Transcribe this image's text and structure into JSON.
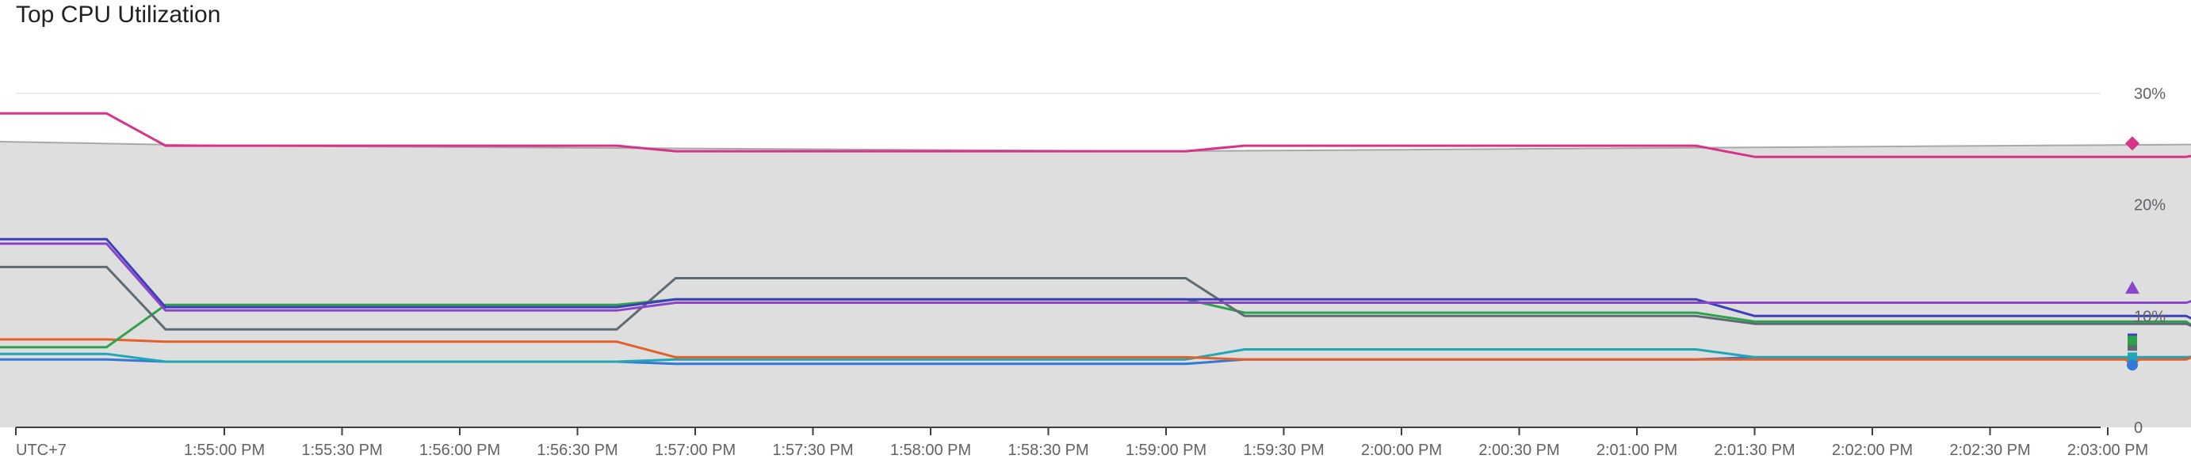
{
  "title": "Top CPU Utilization",
  "chart_data": {
    "type": "line",
    "title": "Top CPU Utilization",
    "timezone_label": "UTC+7",
    "x_unit": "seconds after 1:55:00 PM",
    "x_tick_labels": [
      "1:55:00 PM",
      "1:55:30 PM",
      "1:56:00 PM",
      "1:56:30 PM",
      "1:57:00 PM",
      "1:57:30 PM",
      "1:58:00 PM",
      "1:58:30 PM",
      "1:59:00 PM",
      "1:59:30 PM",
      "2:00:00 PM",
      "2:00:30 PM",
      "2:01:00 PM",
      "2:01:30 PM",
      "2:02:00 PM",
      "2:02:30 PM",
      "2:03:00 PM"
    ],
    "y_tick_labels": [
      "0",
      "10%",
      "20%",
      "30%"
    ],
    "ylim": [
      0,
      30
    ],
    "y_ticks": [
      0,
      10,
      20,
      30
    ],
    "grid": true,
    "cursor_at": 550,
    "band": {
      "color": "#dedede",
      "upper_color": "#a8a8a8",
      "x": [
        -420,
        0,
        240,
        540
      ],
      "y": [
        28,
        25.3,
        24.8,
        25.5
      ]
    },
    "series": [
      {
        "color": "#d6338a",
        "marker": "diamond",
        "x": [
          -420,
          -30,
          -15,
          15,
          100,
          115,
          245,
          260,
          375,
          390,
          420,
          500,
          515,
          600,
          615,
          815,
          830,
          880,
          890,
          1060,
          1075,
          1220,
          1235,
          1305,
          1315,
          1390,
          1410
        ],
        "y": [
          28.2,
          28.2,
          25.3,
          25.3,
          25.3,
          24.8,
          24.8,
          25.3,
          25.3,
          24.3,
          24.3,
          24.3,
          25.3,
          25.3,
          25.3,
          26.3,
          26.3,
          26.3,
          26.1,
          26.1,
          26.1,
          26.1,
          25.3,
          25.3,
          25.3,
          25.3,
          25.5
        ]
      },
      {
        "color": "#8b45c8",
        "marker": "triangle",
        "x": [
          -420,
          -30,
          -15,
          15,
          100,
          115,
          245,
          260,
          375,
          390,
          420,
          500,
          515,
          600,
          615,
          815,
          830,
          880,
          890,
          1060,
          1075,
          1220,
          1235,
          1305,
          1315,
          1390,
          1410
        ],
        "y": [
          16.5,
          16.5,
          10.5,
          10.5,
          10.5,
          11.2,
          11.2,
          11.2,
          11.2,
          11.2,
          11.2,
          11.2,
          12.8,
          12.8,
          12.8,
          10.8,
          10.8,
          10.8,
          11.5,
          11.5,
          11.5,
          15.5,
          15.5,
          15.5,
          15.5,
          12.5,
          12.5
        ]
      },
      {
        "color": "#3d3fb8",
        "marker": "",
        "x": [
          -420,
          -30,
          -15,
          15,
          100,
          115,
          245,
          260,
          375,
          390,
          420,
          500,
          515,
          600,
          615,
          815,
          830,
          880,
          890,
          1060,
          1075,
          1220,
          1235,
          1305,
          1315,
          1390,
          1410
        ],
        "y": [
          16.9,
          16.9,
          10.8,
          10.8,
          10.8,
          11.5,
          11.5,
          11.5,
          11.5,
          10.0,
          10.0,
          10.0,
          7.5,
          7.5,
          7.5,
          9.6,
          9.6,
          9.6,
          9.5,
          9.5,
          9.5,
          9.3,
          9.3,
          9.3,
          9.2,
          8.0,
          8.0
        ]
      },
      {
        "color": "#5f6b73",
        "marker": "",
        "x": [
          -420,
          -30,
          -15,
          15,
          100,
          115,
          245,
          260,
          375,
          390,
          420,
          500,
          515,
          600,
          615,
          815,
          830,
          880,
          890,
          1060,
          1075,
          1220,
          1235,
          1305,
          1315,
          1390,
          1410
        ],
        "y": [
          14.4,
          14.4,
          8.8,
          8.8,
          8.8,
          13.4,
          13.4,
          10.0,
          10.0,
          9.3,
          9.3,
          9.3,
          7.3,
          7.3,
          7.3,
          9.2,
          9.2,
          9.2,
          9.0,
          9.0,
          9.0,
          7.8,
          7.8,
          7.8,
          7.7,
          7.3,
          7.3
        ]
      },
      {
        "color": "#2ca24a",
        "marker": "",
        "x": [
          -420,
          -30,
          -15,
          15,
          100,
          115,
          245,
          260,
          375,
          390,
          420,
          500,
          515,
          600,
          615,
          815,
          830,
          880,
          890,
          1060,
          1075,
          1220,
          1235,
          1305,
          1315,
          1390,
          1410
        ],
        "y": [
          7.2,
          7.2,
          11.0,
          11.0,
          11.0,
          11.5,
          11.5,
          10.3,
          10.3,
          9.5,
          9.5,
          9.5,
          6.1,
          6.1,
          6.1,
          9.7,
          9.7,
          9.7,
          9.6,
          9.6,
          9.6,
          9.3,
          9.3,
          9.3,
          9.2,
          7.8,
          7.8
        ]
      },
      {
        "color": "#e3602a",
        "marker": "diamond",
        "x": [
          -420,
          -30,
          -15,
          15,
          100,
          115,
          245,
          260,
          375,
          390,
          420,
          500,
          515,
          600,
          615,
          815,
          830,
          880,
          890,
          1060,
          1075,
          1220,
          1235,
          1305,
          1315,
          1390,
          1410
        ],
        "y": [
          7.9,
          7.9,
          7.7,
          7.7,
          7.7,
          6.3,
          6.3,
          6.1,
          6.1,
          6.1,
          6.1,
          6.1,
          8.3,
          8.3,
          8.3,
          8.0,
          8.0,
          8.0,
          5.9,
          5.9,
          5.9,
          6.0,
          6.0,
          6.0,
          6.0,
          6.0,
          6.0
        ]
      },
      {
        "color": "#21a6b5",
        "marker": "",
        "x": [
          -420,
          -30,
          -15,
          15,
          100,
          115,
          245,
          260,
          375,
          390,
          420,
          500,
          515,
          600,
          615,
          815,
          830,
          880,
          890,
          1060,
          1075,
          1220,
          1235,
          1305,
          1315,
          1390,
          1410
        ],
        "y": [
          6.6,
          6.6,
          5.9,
          5.9,
          5.9,
          6.1,
          6.1,
          7.0,
          7.0,
          6.3,
          6.3,
          6.3,
          6.8,
          6.8,
          6.8,
          5.9,
          5.9,
          5.9,
          7.2,
          7.2,
          7.2,
          6.3,
          6.3,
          6.3,
          6.3,
          6.3,
          6.3
        ]
      },
      {
        "color": "#3478d6",
        "marker": "circle",
        "x": [
          -420,
          -30,
          -15,
          15,
          100,
          115,
          245,
          260,
          375,
          390,
          420,
          500,
          515,
          600,
          615,
          815,
          830,
          880,
          890,
          1060,
          1075,
          1220,
          1235,
          1305,
          1315,
          1390,
          1410
        ],
        "y": [
          6.1,
          6.1,
          5.9,
          5.9,
          5.9,
          5.7,
          5.7,
          6.1,
          6.1,
          6.3,
          6.3,
          6.3,
          6.3,
          6.3,
          6.3,
          6.5,
          6.5,
          6.5,
          6.1,
          6.1,
          6.1,
          6.3,
          6.3,
          6.3,
          6.5,
          5.6,
          5.6
        ]
      }
    ]
  }
}
